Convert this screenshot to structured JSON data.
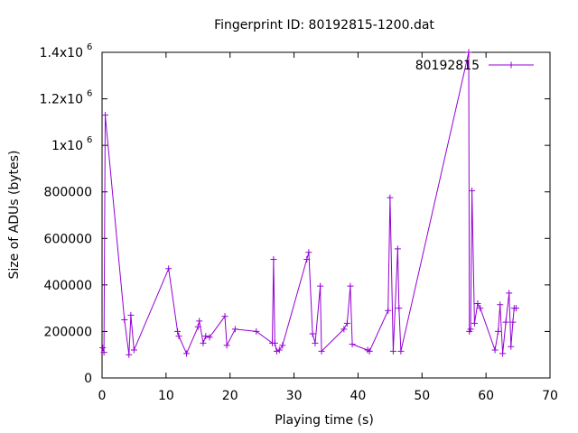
{
  "chart_data": {
    "type": "line",
    "title": "Fingerprint ID: 80192815-1200.dat",
    "xlabel": "Playing time (s)",
    "ylabel": "Size of ADUs (bytes)",
    "xlim": [
      0,
      70
    ],
    "ylim": [
      0,
      1400000
    ],
    "x_ticks": [
      0,
      10,
      20,
      30,
      40,
      50,
      60,
      70
    ],
    "x_tick_labels": [
      "0",
      "10",
      "20",
      "30",
      "40",
      "50",
      "60",
      "70"
    ],
    "y_ticks": [
      {
        "value": 0,
        "label": "0",
        "exp": ""
      },
      {
        "value": 200000,
        "label": "200000",
        "exp": ""
      },
      {
        "value": 400000,
        "label": "400000",
        "exp": ""
      },
      {
        "value": 600000,
        "label": "600000",
        "exp": ""
      },
      {
        "value": 800000,
        "label": "800000",
        "exp": ""
      },
      {
        "value": 1000000,
        "label": "1x10",
        "exp": "6"
      },
      {
        "value": 1200000,
        "label": "1.2x10",
        "exp": "6"
      },
      {
        "value": 1400000,
        "label": "1.4x10",
        "exp": "6"
      }
    ],
    "grid": false,
    "legend_position": "top-right",
    "series": [
      {
        "name": "80192815",
        "color": "#9400d3",
        "marker": "plus",
        "x": [
          0.1,
          0.3,
          0.5,
          3.5,
          4.2,
          4.5,
          5.0,
          10.4,
          11.8,
          12.0,
          13.2,
          15.0,
          15.2,
          15.8,
          16.2,
          16.8,
          19.2,
          19.5,
          20.8,
          24.1,
          26.6,
          26.8,
          27.0,
          27.3,
          27.7,
          28.2,
          32.0,
          32.3,
          32.9,
          33.3,
          34.1,
          34.3,
          37.8,
          38.3,
          38.8,
          39.1,
          41.5,
          41.8,
          44.7,
          45.0,
          45.5,
          46.2,
          46.4,
          46.7,
          57.3,
          57.4,
          57.6,
          57.8,
          58.2,
          58.7,
          59.1,
          61.4,
          61.9,
          62.2,
          62.6,
          63.1,
          63.6,
          63.9,
          64.2,
          64.4,
          64.7
        ],
        "y": [
          130000,
          110000,
          1130000,
          250000,
          100000,
          270000,
          120000,
          470000,
          200000,
          180000,
          105000,
          220000,
          245000,
          150000,
          180000,
          175000,
          265000,
          140000,
          210000,
          200000,
          150000,
          510000,
          150000,
          115000,
          120000,
          140000,
          510000,
          540000,
          190000,
          150000,
          395000,
          115000,
          210000,
          235000,
          395000,
          145000,
          120000,
          115000,
          290000,
          775000,
          115000,
          555000,
          300000,
          115000,
          1400000,
          200000,
          210000,
          805000,
          235000,
          320000,
          300000,
          120000,
          200000,
          315000,
          105000,
          240000,
          365000,
          135000,
          240000,
          300000,
          300000
        ]
      }
    ]
  }
}
